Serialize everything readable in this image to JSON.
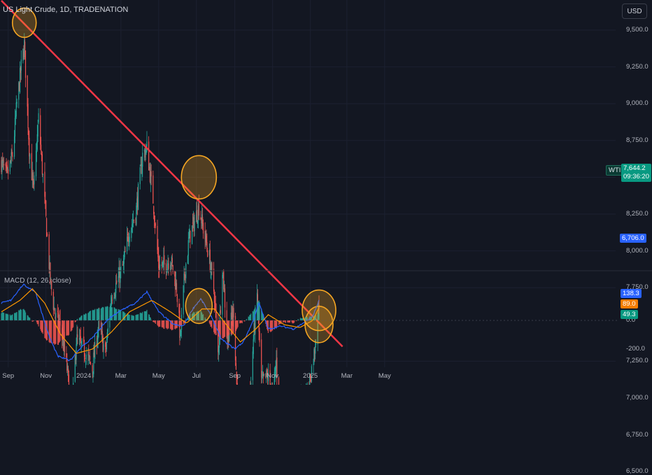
{
  "header": {
    "symbol": "US Light Crude, 1D, TRADENATION",
    "currency": "USD"
  },
  "indicator": {
    "label": "MACD (12, 26, close)"
  },
  "badges": {
    "wti": "WTI",
    "last_price": "7,644.2",
    "countdown": "09:36:20",
    "support": "6,706.0",
    "macd_line": "138.3",
    "signal_line": "89.0",
    "histogram": "49.3"
  },
  "colors": {
    "background": "#131722",
    "up": "#26a69a",
    "down": "#ef5350",
    "trendline": "#f23645",
    "support": "#2962ff",
    "macd": "#2962ff",
    "signal": "#ff9800",
    "highlight": "#f5a623"
  },
  "chart_data": {
    "type": "candlestick",
    "price_axis": {
      "ticks": [
        "9,500.0",
        "9,250.0",
        "9,000.0",
        "8,750.0",
        "8,500.0",
        "8,250.0",
        "8,000.0",
        "7,750.0",
        "7,250.0",
        "7,000.0",
        "6,750.0",
        "6,500.0"
      ],
      "range": [
        6400,
        9800
      ]
    },
    "time_axis": {
      "labels": [
        "Sep",
        "Nov",
        "2024",
        "Mar",
        "May",
        "Jul",
        "Sep",
        "Nov",
        "2025",
        "Mar",
        "May"
      ]
    },
    "price_path": [
      [
        "2023-08-21",
        8600
      ],
      [
        "2023-08-30",
        8500
      ],
      [
        "2023-09-08",
        8650
      ],
      [
        "2023-09-15",
        9000
      ],
      [
        "2023-09-22",
        9250
      ],
      [
        "2023-09-27",
        9400
      ],
      [
        "2023-10-05",
        8700
      ],
      [
        "2023-10-12",
        8400
      ],
      [
        "2023-10-20",
        8900
      ],
      [
        "2023-10-27",
        8500
      ],
      [
        "2023-11-08",
        7800
      ],
      [
        "2023-11-16",
        7550
      ],
      [
        "2023-11-24",
        7500
      ],
      [
        "2023-12-05",
        7200
      ],
      [
        "2023-12-13",
        6900
      ],
      [
        "2023-12-20",
        7400
      ],
      [
        "2024-01-05",
        7300
      ],
      [
        "2024-01-15",
        7200
      ],
      [
        "2024-01-25",
        7500
      ],
      [
        "2024-02-05",
        7300
      ],
      [
        "2024-02-15",
        7700
      ],
      [
        "2024-02-25",
        7800
      ],
      [
        "2024-03-05",
        7900
      ],
      [
        "2024-03-15",
        8150
      ],
      [
        "2024-03-25",
        8250
      ],
      [
        "2024-04-05",
        8650
      ],
      [
        "2024-04-12",
        8700
      ],
      [
        "2024-04-22",
        8350
      ],
      [
        "2024-05-01",
        7900
      ],
      [
        "2024-05-10",
        7900
      ],
      [
        "2024-05-20",
        7950
      ],
      [
        "2024-05-30",
        7750
      ],
      [
        "2024-06-05",
        7400
      ],
      [
        "2024-06-12",
        7850
      ],
      [
        "2024-06-20",
        8100
      ],
      [
        "2024-06-28",
        8200
      ],
      [
        "2024-07-05",
        8300
      ],
      [
        "2024-07-12",
        8150
      ],
      [
        "2024-07-22",
        7950
      ],
      [
        "2024-07-30",
        7700
      ],
      [
        "2024-08-05",
        7300
      ],
      [
        "2024-08-12",
        7900
      ],
      [
        "2024-08-20",
        7400
      ],
      [
        "2024-08-30",
        7600
      ],
      [
        "2024-09-05",
        7000
      ],
      [
        "2024-09-10",
        6750
      ],
      [
        "2024-09-20",
        7000
      ],
      [
        "2024-09-27",
        7100
      ],
      [
        "2024-10-01",
        7400
      ],
      [
        "2024-10-07",
        7700
      ],
      [
        "2024-10-14",
        7100
      ],
      [
        "2024-10-24",
        7150
      ],
      [
        "2024-11-01",
        7000
      ],
      [
        "2024-11-07",
        7250
      ],
      [
        "2024-11-15",
        6750
      ],
      [
        "2024-11-25",
        6900
      ],
      [
        "2024-12-05",
        6800
      ],
      [
        "2024-12-12",
        7000
      ],
      [
        "2024-12-20",
        6950
      ],
      [
        "2024-12-30",
        7100
      ],
      [
        "2025-01-07",
        7300
      ],
      [
        "2025-01-15",
        7650
      ]
    ],
    "trendline": {
      "points": [
        [
          "2023-08-21",
          9700
        ],
        [
          "2025-02-22",
          7350
        ]
      ]
    },
    "support_level": 6706.0,
    "highlighted_points": [
      [
        "2023-09-27",
        9550
      ],
      [
        "2024-07-05",
        8500
      ],
      [
        "2025-01-15",
        7500
      ]
    ],
    "macd": {
      "axis_ticks": [
        "0.0",
        "-200.0"
      ],
      "last": {
        "macd": 138.3,
        "signal": 89.0,
        "histogram": 49.3
      },
      "macd_path": [
        [
          "2023-08-21",
          120
        ],
        [
          "2023-09-05",
          140
        ],
        [
          "2023-09-25",
          250
        ],
        [
          "2023-10-15",
          200
        ],
        [
          "2023-11-05",
          -100
        ],
        [
          "2023-11-20",
          -250
        ],
        [
          "2023-12-10",
          -280
        ],
        [
          "2023-12-25",
          -200
        ],
        [
          "2024-01-15",
          -120
        ],
        [
          "2024-02-10",
          10
        ],
        [
          "2024-03-05",
          80
        ],
        [
          "2024-03-25",
          120
        ],
        [
          "2024-04-12",
          200
        ],
        [
          "2024-05-01",
          60
        ],
        [
          "2024-05-25",
          -30
        ],
        [
          "2024-06-10",
          -40
        ],
        [
          "2024-06-25",
          80
        ],
        [
          "2024-07-08",
          150
        ],
        [
          "2024-07-25",
          30
        ],
        [
          "2024-08-10",
          -130
        ],
        [
          "2024-09-01",
          -200
        ],
        [
          "2024-09-15",
          -150
        ],
        [
          "2024-10-01",
          0
        ],
        [
          "2024-10-10",
          120
        ],
        [
          "2024-10-25",
          -60
        ],
        [
          "2024-11-15",
          -40
        ],
        [
          "2024-12-05",
          -60
        ],
        [
          "2024-12-20",
          -20
        ],
        [
          "2025-01-05",
          30
        ],
        [
          "2025-01-15",
          138
        ]
      ],
      "signal_path": [
        [
          "2023-08-21",
          60
        ],
        [
          "2023-09-20",
          140
        ],
        [
          "2023-10-10",
          220
        ],
        [
          "2023-10-30",
          120
        ],
        [
          "2023-11-25",
          -100
        ],
        [
          "2023-12-20",
          -230
        ],
        [
          "2024-01-15",
          -200
        ],
        [
          "2024-02-15",
          -80
        ],
        [
          "2024-03-15",
          60
        ],
        [
          "2024-04-20",
          140
        ],
        [
          "2024-05-20",
          60
        ],
        [
          "2024-06-15",
          -20
        ],
        [
          "2024-07-10",
          80
        ],
        [
          "2024-07-30",
          80
        ],
        [
          "2024-08-20",
          -40
        ],
        [
          "2024-09-10",
          -150
        ],
        [
          "2024-10-05",
          -60
        ],
        [
          "2024-10-25",
          40
        ],
        [
          "2024-11-20",
          -30
        ],
        [
          "2024-12-15",
          -50
        ],
        [
          "2025-01-05",
          0
        ],
        [
          "2025-01-15",
          89
        ]
      ],
      "highlighted_points": [
        [
          "2024-07-05",
          120
        ],
        [
          "2025-01-15",
          90
        ]
      ]
    }
  }
}
